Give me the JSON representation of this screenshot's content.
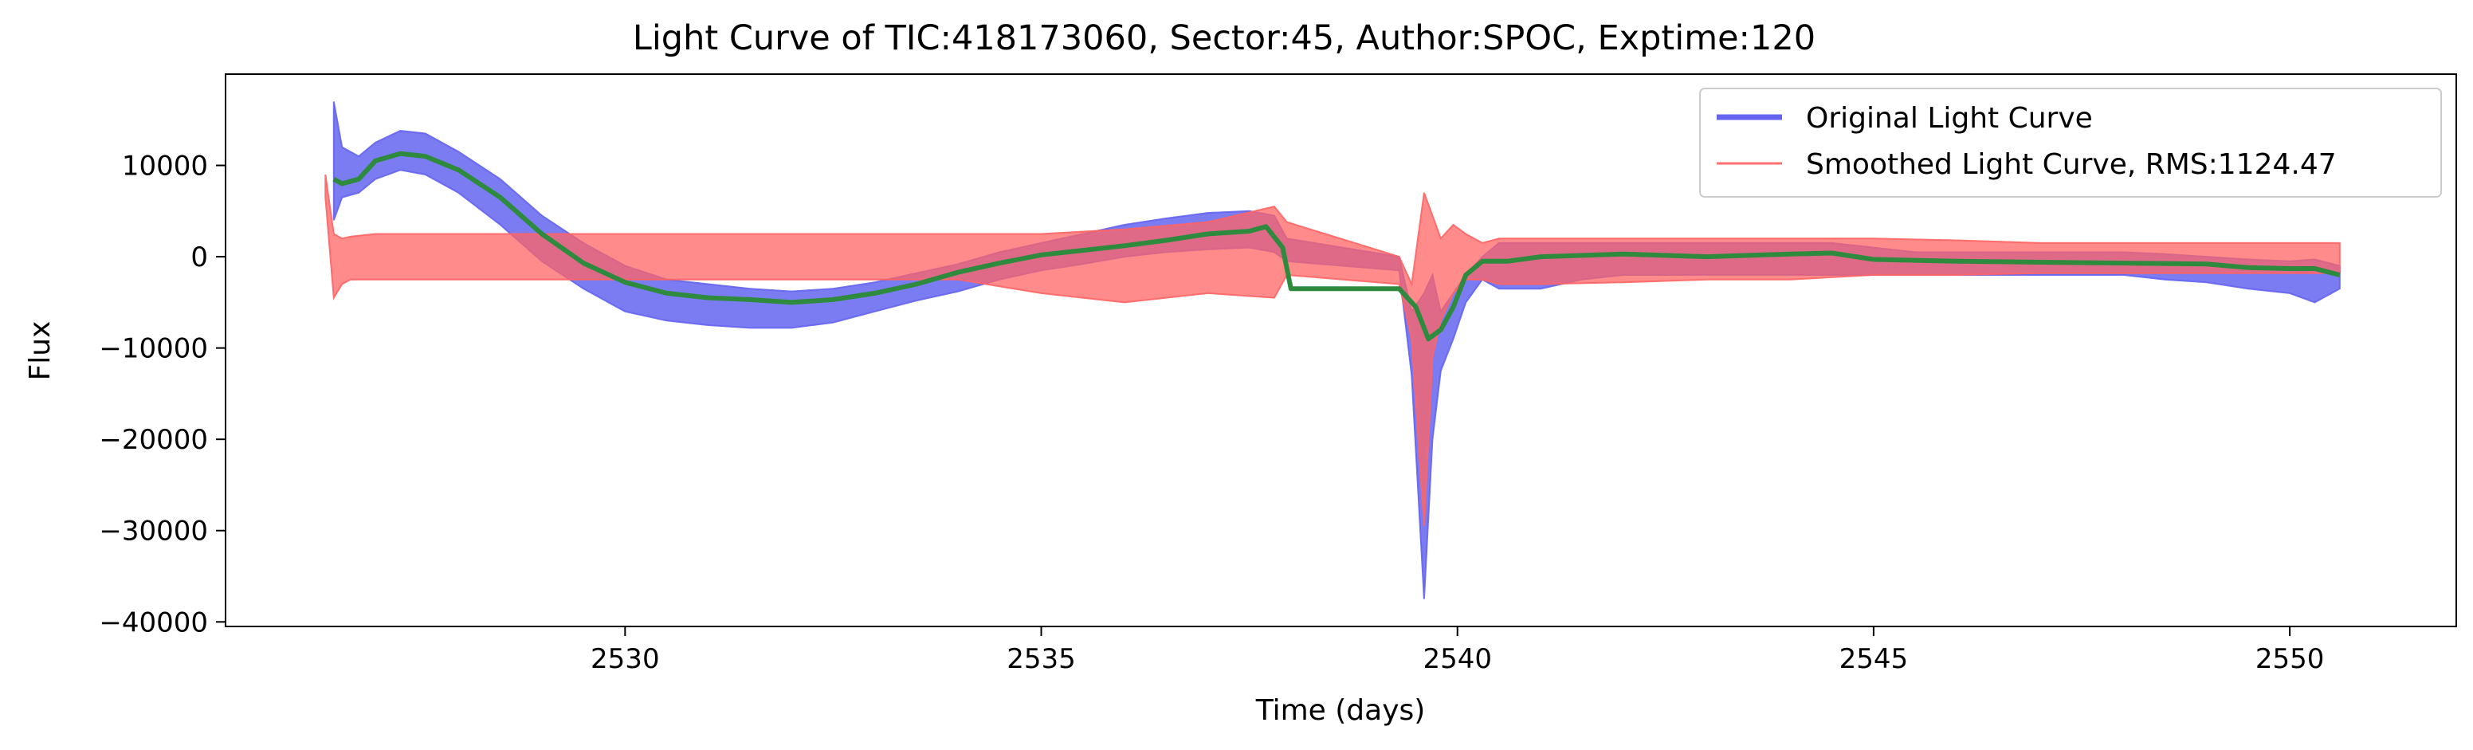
{
  "chart_data": {
    "type": "line",
    "title": "Light Curve of TIC:418173060, Sector:45, Author:SPOC, Exptime:120",
    "xlabel": "Time (days)",
    "ylabel": "Flux",
    "xlim": [
      2525.2,
      2552.0
    ],
    "ylim": [
      -40500,
      20000
    ],
    "xticks": [
      2530,
      2535,
      2540,
      2545,
      2550
    ],
    "yticks": [
      10000,
      0,
      -10000,
      -20000,
      -30000,
      -40000
    ],
    "xtick_labels": [
      "2530",
      "2535",
      "2540",
      "2545",
      "2550"
    ],
    "ytick_labels": [
      "10000",
      "0",
      "−10000",
      "−20000",
      "−30000",
      "−40000"
    ],
    "grid": false,
    "legend_position": "top-right",
    "series": [
      {
        "name": "Original Light Curve",
        "color": "#6464f0",
        "style": "band",
        "x": [
          2526.5,
          2526.6,
          2526.8,
          2527.0,
          2527.3,
          2527.6,
          2528.0,
          2528.5,
          2529.0,
          2529.5,
          2530.0,
          2530.5,
          2531.0,
          2531.5,
          2532.0,
          2532.5,
          2533.0,
          2533.5,
          2534.0,
          2534.5,
          2535.0,
          2535.5,
          2536.0,
          2536.5,
          2537.0,
          2537.5,
          2537.8,
          2537.95,
          2539.3,
          2539.45,
          2539.6,
          2539.7,
          2539.8,
          2539.95,
          2540.1,
          2540.3,
          2540.5,
          2541.0,
          2541.5,
          2542.0,
          2542.5,
          2543.0,
          2543.5,
          2544.0,
          2544.5,
          2545.0,
          2545.5,
          2546.0,
          2546.5,
          2547.0,
          2547.5,
          2548.0,
          2548.5,
          2549.0,
          2549.5,
          2550.0,
          2550.3,
          2550.6
        ],
        "upper": [
          17000,
          12000,
          11000,
          12500,
          13800,
          13500,
          11500,
          8500,
          4500,
          1500,
          -1000,
          -2500,
          -3000,
          -3500,
          -3800,
          -3500,
          -2800,
          -1800,
          -800,
          500,
          1500,
          2500,
          3500,
          4200,
          4800,
          5000,
          4500,
          2000,
          0,
          -6000,
          -4000,
          -2000,
          -6000,
          -4000,
          -2000,
          0,
          1500,
          1500,
          1500,
          1500,
          1500,
          1500,
          1500,
          1500,
          1500,
          1000,
          500,
          500,
          500,
          500,
          500,
          500,
          300,
          0,
          -300,
          -500,
          -300,
          -1000
        ],
        "lower": [
          4000,
          6500,
          7000,
          8500,
          9500,
          9000,
          7000,
          3500,
          -500,
          -3500,
          -6000,
          -7000,
          -7500,
          -7800,
          -7800,
          -7200,
          -6000,
          -4800,
          -3800,
          -2500,
          -1500,
          -800,
          0,
          500,
          800,
          1000,
          500,
          -500,
          -1500,
          -13000,
          -37500,
          -20000,
          -12500,
          -9000,
          -5000,
          -2500,
          -3500,
          -3500,
          -2500,
          -2000,
          -2000,
          -2000,
          -2000,
          -2000,
          -2000,
          -2000,
          -2000,
          -2000,
          -2000,
          -2000,
          -2000,
          -2000,
          -2500,
          -2800,
          -3500,
          -4000,
          -5000,
          -3500
        ]
      },
      {
        "name": "Smoothed Light Curve, RMS:1124.47",
        "color": "#ff6464",
        "style": "band",
        "x": [
          2526.4,
          2526.5,
          2526.6,
          2526.7,
          2527.0,
          2528.0,
          2529.0,
          2530.0,
          2531.0,
          2532.0,
          2533.0,
          2534.0,
          2535.0,
          2536.0,
          2537.0,
          2537.8,
          2537.95,
          2539.3,
          2539.45,
          2539.6,
          2539.7,
          2539.8,
          2539.95,
          2540.1,
          2540.3,
          2540.5,
          2541.0,
          2542.0,
          2543.0,
          2544.0,
          2545.0,
          2546.0,
          2547.0,
          2548.0,
          2549.0,
          2550.0,
          2550.6
        ],
        "upper": [
          9000,
          2500,
          2000,
          2200,
          2500,
          2500,
          2500,
          2500,
          2500,
          2500,
          2500,
          2500,
          2500,
          3000,
          3800,
          5500,
          3800,
          0,
          -3000,
          7000,
          4500,
          2000,
          3500,
          2500,
          1500,
          2000,
          2000,
          2000,
          2000,
          2000,
          2000,
          1800,
          1500,
          1500,
          1500,
          1500,
          1500
        ],
        "lower": [
          6500,
          -4500,
          -3000,
          -2500,
          -2500,
          -2500,
          -2500,
          -2500,
          -2500,
          -2500,
          -2500,
          -2500,
          -4000,
          -5000,
          -4000,
          -4500,
          -2000,
          -3000,
          -9000,
          -29500,
          -11000,
          -7000,
          -4000,
          -2500,
          -2500,
          -3000,
          -3000,
          -2800,
          -2500,
          -2500,
          -2000,
          -2000,
          -1800,
          -1800,
          -1800,
          -1800,
          -1800
        ]
      },
      {
        "name": "",
        "color": "#2e8b3e",
        "style": "line",
        "x": [
          2526.5,
          2526.6,
          2526.8,
          2527.0,
          2527.3,
          2527.6,
          2528.0,
          2528.5,
          2529.0,
          2529.5,
          2530.0,
          2530.5,
          2531.0,
          2531.5,
          2532.0,
          2532.5,
          2533.0,
          2533.5,
          2534.0,
          2534.5,
          2535.0,
          2535.5,
          2536.0,
          2536.5,
          2537.0,
          2537.5,
          2537.7,
          2537.9,
          2538.0,
          2539.3,
          2539.5,
          2539.65,
          2539.8,
          2539.95,
          2540.1,
          2540.3,
          2540.6,
          2541.0,
          2542.0,
          2543.0,
          2544.0,
          2544.5,
          2545.0,
          2546.0,
          2547.0,
          2548.0,
          2549.0,
          2549.5,
          2550.0,
          2550.3,
          2550.6
        ],
        "y": [
          8500,
          8000,
          8500,
          10500,
          11300,
          11000,
          9500,
          6500,
          2500,
          -700,
          -2800,
          -4000,
          -4500,
          -4700,
          -5000,
          -4700,
          -4000,
          -3000,
          -1700,
          -700,
          200,
          700,
          1200,
          1800,
          2500,
          2800,
          3300,
          1000,
          -3500,
          -3500,
          -5500,
          -9000,
          -8000,
          -5500,
          -2000,
          -500,
          -500,
          0,
          300,
          0,
          300,
          400,
          -300,
          -500,
          -600,
          -700,
          -800,
          -1200,
          -1300,
          -1300,
          -2000
        ]
      }
    ]
  }
}
